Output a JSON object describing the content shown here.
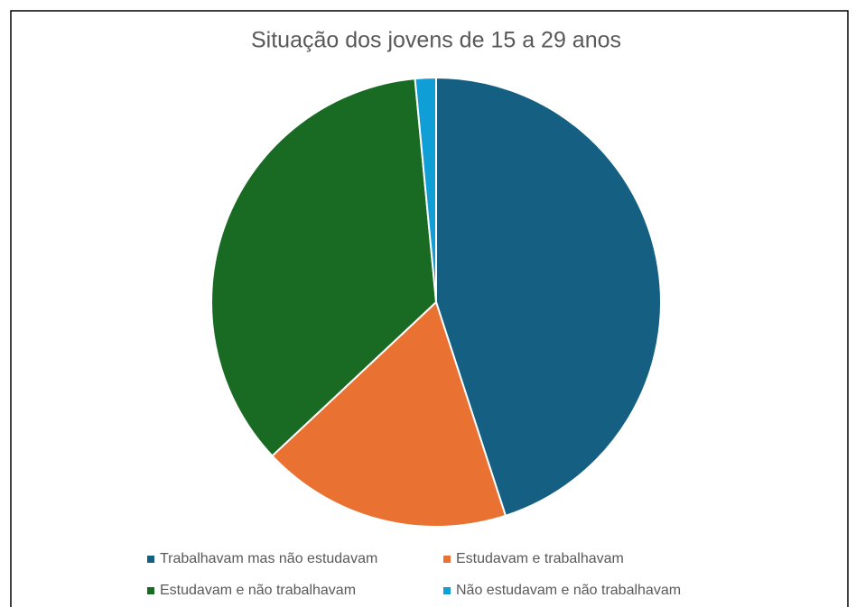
{
  "chart_data": {
    "type": "pie",
    "title": "Situação dos jovens de 15 a 29 anos",
    "categories": [
      "Trabalhavam mas não estudavam",
      "Estudavam e trabalhavam",
      "Estudavam e não trabalhavam",
      "Não estudavam e não trabalhavam"
    ],
    "values": [
      45,
      18,
      35.5,
      1.5
    ],
    "colors": [
      "#156082",
      "#e97132",
      "#196b24",
      "#0f9ed5"
    ],
    "legend": "bottom"
  }
}
